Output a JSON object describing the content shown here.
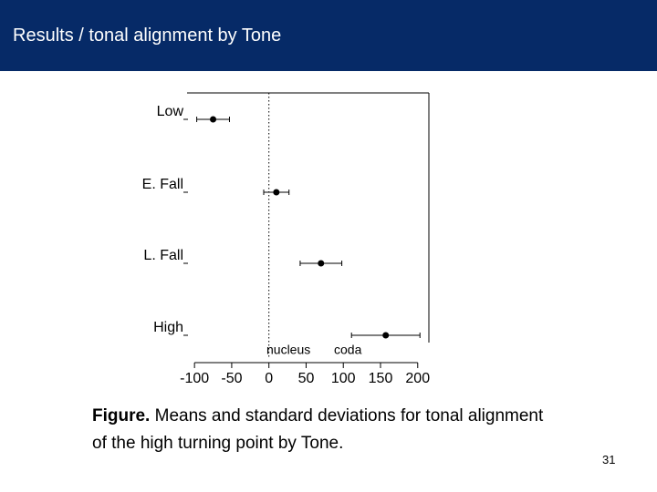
{
  "header": {
    "title": "Results / tonal alignment by Tone"
  },
  "chart_data": {
    "type": "dot-errorbar",
    "categories": [
      "Low",
      "E. Fall",
      "L. Fall",
      "High"
    ],
    "values": [
      -75,
      10,
      70,
      157
    ],
    "errors": [
      22,
      17,
      28,
      46
    ],
    "color": "#000000",
    "xlim": [
      -110,
      215
    ],
    "xticks": [
      -100,
      -50,
      0,
      50,
      100,
      150,
      200
    ],
    "reference_line": 0,
    "annotations": [
      "nucleus",
      "coda"
    ]
  },
  "caption": {
    "label": "Figure.",
    "text": "Means and standard deviations for tonal alignment of the high turning point by Tone."
  },
  "page_number": "31"
}
